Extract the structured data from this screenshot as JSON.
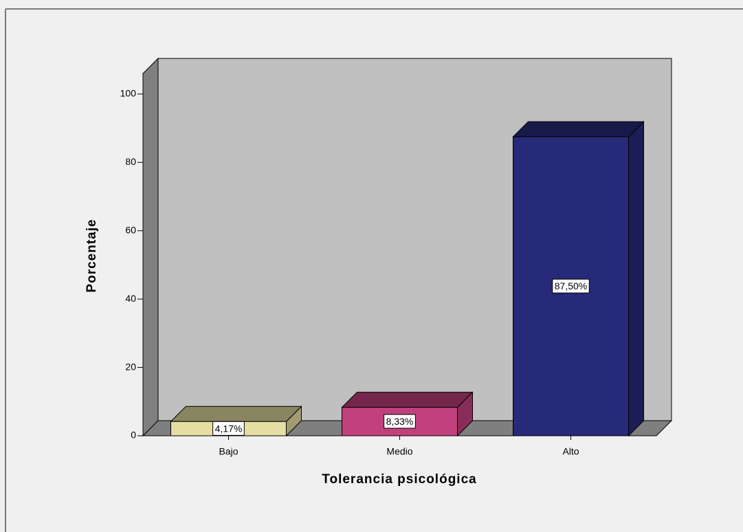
{
  "chart_data": {
    "type": "bar3d",
    "xlabel": "Tolerancia psicológica",
    "ylabel": "Porcentaje",
    "categories": [
      "Bajo",
      "Medio",
      "Alto"
    ],
    "values": [
      4.17,
      8.33,
      87.5
    ],
    "value_labels": [
      "4,17%",
      "8,33%",
      "87,50%"
    ],
    "colors": [
      "#e6dea2",
      "#c2407e",
      "#262a78"
    ],
    "ylim": [
      0,
      106
    ],
    "yticks": [
      0,
      20,
      40,
      60,
      80,
      100
    ]
  }
}
